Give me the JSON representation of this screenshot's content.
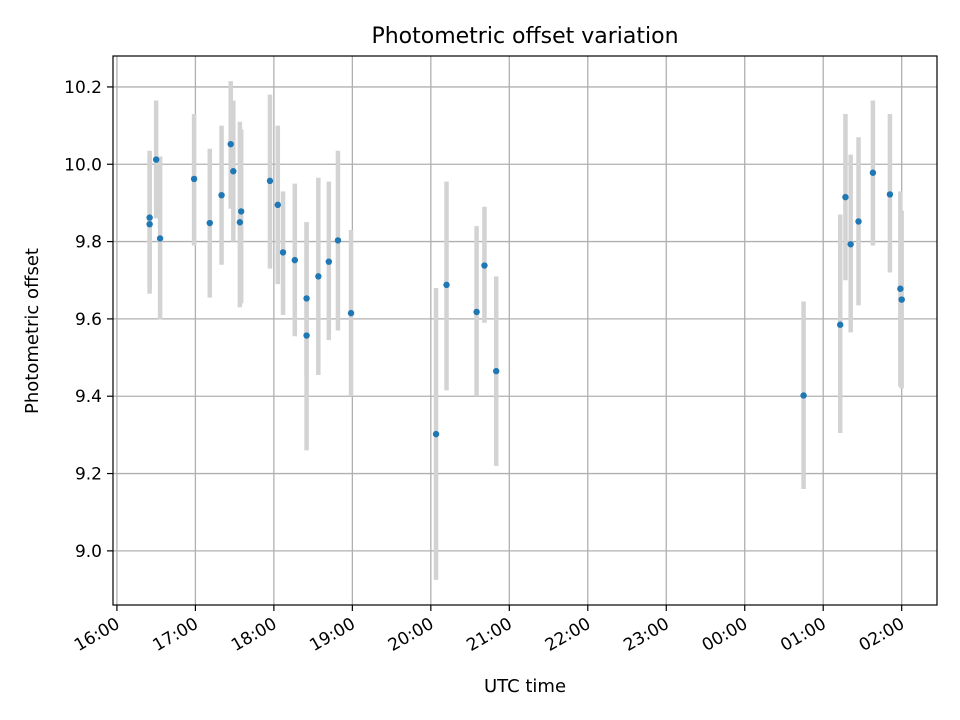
{
  "chart_data": {
    "type": "scatter",
    "title": "Photometric offset variation",
    "xlabel": "UTC time",
    "ylabel": "Photometric offset",
    "grid": true,
    "x_tick_labels": [
      "16:00",
      "17:00",
      "18:00",
      "19:00",
      "20:00",
      "21:00",
      "22:00",
      "23:00",
      "00:00",
      "01:00",
      "02:00"
    ],
    "y_tick_labels": [
      "9.0",
      "9.2",
      "9.4",
      "9.6",
      "9.8",
      "10.0",
      "10.2"
    ],
    "x_range_hours": [
      15.95,
      26.45
    ],
    "ylim": [
      8.86,
      10.28
    ],
    "colors": {
      "point": "#1f77b4",
      "errorbar": "#d3d3d3",
      "grid": "#b0b0b0"
    },
    "points": [
      {
        "t": "16:25",
        "y": 9.845,
        "lo": 9.665,
        "hi": 10.025
      },
      {
        "t": "16:25",
        "y": 9.862,
        "lo": 9.68,
        "hi": 10.035
      },
      {
        "t": "16:30",
        "y": 10.012,
        "lo": 9.86,
        "hi": 10.165
      },
      {
        "t": "16:33",
        "y": 9.808,
        "lo": 9.598,
        "hi": 10.02
      },
      {
        "t": "16:59",
        "y": 9.962,
        "lo": 9.79,
        "hi": 10.13
      },
      {
        "t": "17:11",
        "y": 9.848,
        "lo": 9.655,
        "hi": 10.04
      },
      {
        "t": "17:20",
        "y": 9.92,
        "lo": 9.74,
        "hi": 10.1
      },
      {
        "t": "17:27",
        "y": 10.052,
        "lo": 9.885,
        "hi": 10.215
      },
      {
        "t": "17:29",
        "y": 9.982,
        "lo": 9.8,
        "hi": 10.165
      },
      {
        "t": "17:34",
        "y": 9.85,
        "lo": 9.63,
        "hi": 10.11
      },
      {
        "t": "17:35",
        "y": 9.878,
        "lo": 9.64,
        "hi": 10.09
      },
      {
        "t": "17:57",
        "y": 9.957,
        "lo": 9.73,
        "hi": 10.18
      },
      {
        "t": "18:03",
        "y": 9.895,
        "lo": 9.69,
        "hi": 10.1
      },
      {
        "t": "18:07",
        "y": 9.772,
        "lo": 9.61,
        "hi": 9.93
      },
      {
        "t": "18:16",
        "y": 9.752,
        "lo": 9.555,
        "hi": 9.95
      },
      {
        "t": "18:25",
        "y": 9.653,
        "lo": 9.455,
        "hi": 9.85
      },
      {
        "t": "18:25",
        "y": 9.557,
        "lo": 9.26,
        "hi": 9.85
      },
      {
        "t": "18:34",
        "y": 9.71,
        "lo": 9.455,
        "hi": 9.965
      },
      {
        "t": "18:42",
        "y": 9.748,
        "lo": 9.545,
        "hi": 9.955
      },
      {
        "t": "18:49",
        "y": 9.803,
        "lo": 9.57,
        "hi": 10.035
      },
      {
        "t": "18:59",
        "y": 9.615,
        "lo": 9.4,
        "hi": 9.83
      },
      {
        "t": "20:04",
        "y": 9.302,
        "lo": 8.925,
        "hi": 9.68
      },
      {
        "t": "20:12",
        "y": 9.688,
        "lo": 9.415,
        "hi": 9.955
      },
      {
        "t": "20:35",
        "y": 9.618,
        "lo": 9.4,
        "hi": 9.84
      },
      {
        "t": "20:41",
        "y": 9.738,
        "lo": 9.59,
        "hi": 9.89
      },
      {
        "t": "20:50",
        "y": 9.465,
        "lo": 9.22,
        "hi": 9.71
      },
      {
        "t": "00:45",
        "y": 9.402,
        "lo": 9.16,
        "hi": 9.645
      },
      {
        "t": "01:13",
        "y": 9.585,
        "lo": 9.305,
        "hi": 9.87
      },
      {
        "t": "01:17",
        "y": 9.915,
        "lo": 9.7,
        "hi": 10.13
      },
      {
        "t": "01:21",
        "y": 9.793,
        "lo": 9.565,
        "hi": 10.025
      },
      {
        "t": "01:27",
        "y": 9.852,
        "lo": 9.635,
        "hi": 10.07
      },
      {
        "t": "01:38",
        "y": 9.978,
        "lo": 9.79,
        "hi": 10.165
      },
      {
        "t": "01:51",
        "y": 9.922,
        "lo": 9.72,
        "hi": 10.13
      },
      {
        "t": "01:59",
        "y": 9.678,
        "lo": 9.425,
        "hi": 9.93
      },
      {
        "t": "02:00",
        "y": 9.65,
        "lo": 9.42,
        "hi": 9.88
      }
    ]
  }
}
